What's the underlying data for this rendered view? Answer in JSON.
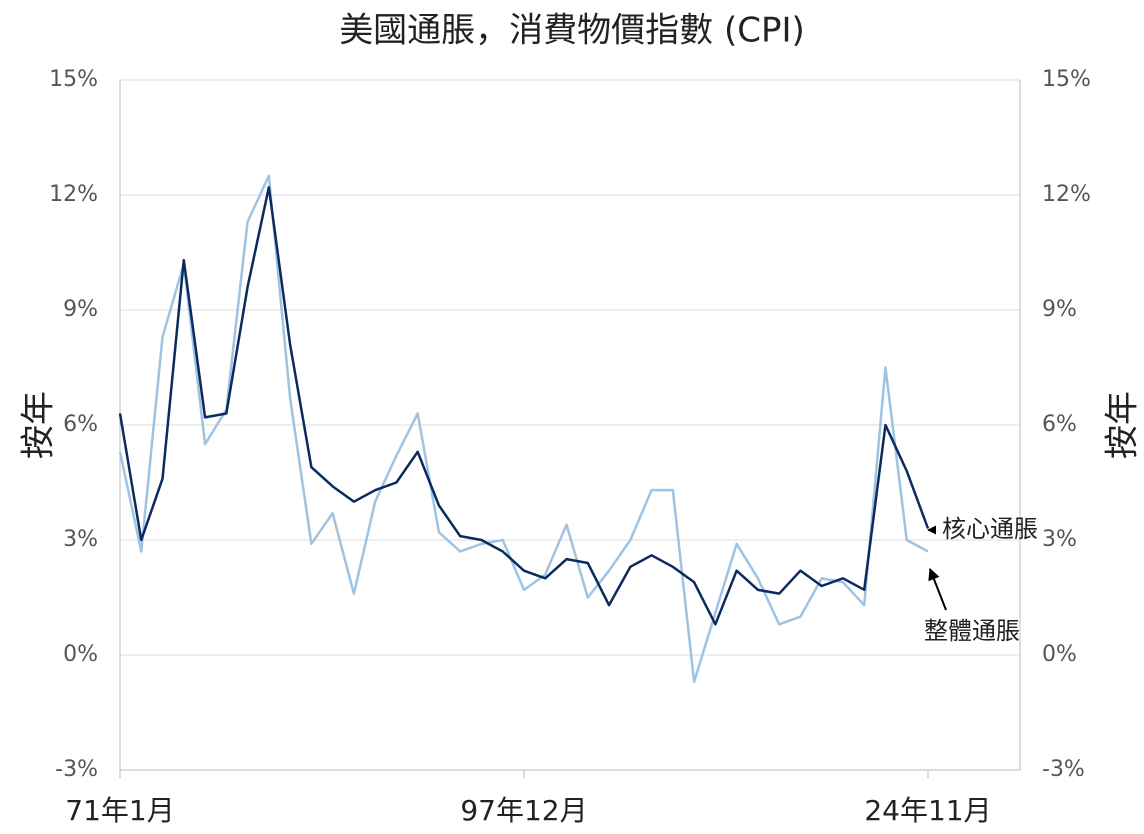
{
  "chart_data": {
    "type": "line",
    "title": "美國通脹，消費物價指數 (CPI)",
    "y_label": "按年",
    "y2_label": "按年",
    "categories": [
      "71年1月",
      null,
      null,
      null,
      null,
      null,
      null,
      null,
      null,
      null,
      null,
      null,
      null,
      null,
      null,
      null,
      null,
      null,
      null,
      "97年12月",
      null,
      null,
      null,
      null,
      null,
      null,
      null,
      null,
      null,
      null,
      null,
      null,
      null,
      null,
      null,
      null,
      null,
      null,
      "24年11月"
    ],
    "series": [
      {
        "name": "整體通脹",
        "color": "#9fc3e3",
        "values": [
          5.3,
          2.7,
          8.3,
          10.2,
          5.5,
          6.4,
          11.3,
          12.5,
          6.7,
          2.9,
          3.7,
          1.6,
          4.0,
          5.2,
          6.3,
          3.2,
          2.7,
          2.9,
          3.0,
          1.7,
          2.1,
          3.4,
          1.5,
          2.2,
          3.0,
          4.3,
          4.3,
          -0.7,
          1.1,
          2.9,
          2.0,
          0.8,
          1.0,
          2.0,
          1.9,
          1.3,
          7.5,
          3.0,
          2.7
        ]
      },
      {
        "name": "核心通脹",
        "color": "#0b2a5e",
        "values": [
          6.3,
          3.0,
          4.6,
          10.3,
          6.2,
          6.3,
          9.6,
          12.2,
          8.1,
          4.9,
          4.4,
          4.0,
          4.3,
          4.5,
          5.3,
          3.9,
          3.1,
          3.0,
          2.7,
          2.2,
          2.0,
          2.5,
          2.4,
          1.3,
          2.3,
          2.6,
          2.3,
          1.9,
          0.8,
          2.2,
          1.7,
          1.6,
          2.2,
          1.8,
          2.0,
          1.7,
          6.0,
          4.8,
          3.3
        ]
      }
    ],
    "ylim": [
      -3,
      15
    ],
    "yticks": [
      {
        "value": -3,
        "label": "-3%"
      },
      {
        "value": 0,
        "label": "0%"
      },
      {
        "value": 3,
        "label": "3%"
      },
      {
        "value": 6,
        "label": "6%"
      },
      {
        "value": 9,
        "label": "9%"
      },
      {
        "value": 12,
        "label": "12%"
      },
      {
        "value": 15,
        "label": "15%"
      }
    ],
    "y2lim": [
      -3,
      15
    ],
    "y2ticks": [
      {
        "value": -3,
        "label": "-3%"
      },
      {
        "value": 0,
        "label": "0%"
      },
      {
        "value": 3,
        "label": "3%"
      },
      {
        "value": 6,
        "label": "6%"
      },
      {
        "value": 9,
        "label": "9%"
      },
      {
        "value": 12,
        "label": "12%"
      },
      {
        "value": 15,
        "label": "15%"
      }
    ],
    "grid": true
  }
}
